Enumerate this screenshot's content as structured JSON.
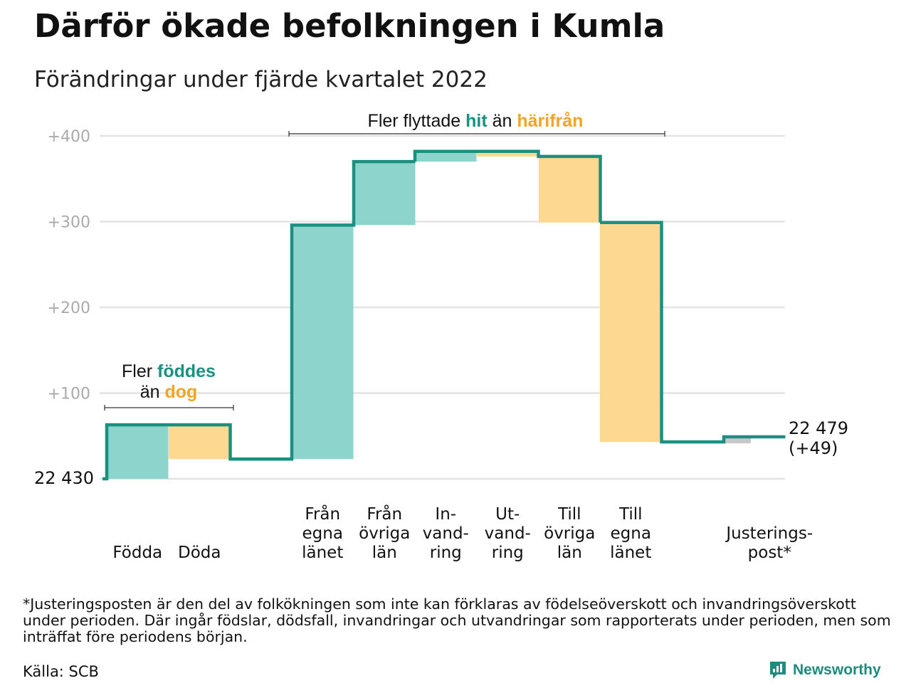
{
  "title": "Därför ökade befolkningen i Kumla",
  "subtitle": "Förändringar under fjärde kvartalet 2022",
  "chart_data": {
    "type": "waterfall",
    "start_value": 22430,
    "start_label": "22 430",
    "end_value": 22479,
    "end_label": "22 479",
    "end_change_label": "(+49)",
    "y_ticks": [
      {
        "value": 100,
        "label": "+100"
      },
      {
        "value": 200,
        "label": "+200"
      },
      {
        "value": 300,
        "label": "+300"
      },
      {
        "value": 400,
        "label": "+400"
      }
    ],
    "ylim": [
      0,
      420
    ],
    "grid": true,
    "steps": [
      {
        "label": [
          "Födda"
        ],
        "change": 63,
        "kind": "in",
        "group": "births"
      },
      {
        "label": [
          "Döda"
        ],
        "change": -40,
        "kind": "out",
        "group": "births"
      },
      {
        "label": [
          "Från",
          "egna",
          "länet"
        ],
        "change": 273,
        "kind": "in",
        "group": "moves"
      },
      {
        "label": [
          "Från",
          "övriga",
          "län"
        ],
        "change": 74,
        "kind": "in",
        "group": "moves"
      },
      {
        "label": [
          "In-",
          "vand-",
          "ring"
        ],
        "change": 12,
        "kind": "in",
        "group": "moves"
      },
      {
        "label": [
          "Ut-",
          "vand-",
          "ring"
        ],
        "change": -6,
        "kind": "out",
        "group": "moves"
      },
      {
        "label": [
          "Till",
          "övriga",
          "län"
        ],
        "change": -77,
        "kind": "out",
        "group": "moves"
      },
      {
        "label": [
          "Till",
          "egna",
          "länet"
        ],
        "change": -256,
        "kind": "out",
        "group": "moves"
      },
      {
        "label": [
          "Justerings-",
          "post*"
        ],
        "change": 6,
        "kind": "adjust",
        "group": "adjust"
      }
    ],
    "annotations": {
      "births": {
        "prefix_line1": "Fler ",
        "hl1": "föddes",
        "prefix_line2": "än ",
        "hl2": "dog"
      },
      "moves": {
        "prefix": "Fler flyttade ",
        "hl1": "hit",
        "mid": " än ",
        "hl2": "härifrån"
      }
    },
    "colors": {
      "line": "#1a9080",
      "in_fill": "#8dd5cc",
      "out_fill": "#fcd891",
      "in_text": "#1a9080",
      "out_text": "#f0a526",
      "adjust_fill": "#c8c8c8",
      "grid": "#e3e3e3",
      "tick_text": "#aaaaaa"
    }
  },
  "footnote": "*Justeringsposten är den del av folkökningen som inte kan förklaras av födelseöverskott och invandringsöverskott under perioden. Där ingår födslar, dödsfall, invandringar och utvandringar som rapporterats under perioden, men som inträffat före periodens början.",
  "source": "Källa: SCB",
  "brand": {
    "name": "Newsworthy",
    "icon": "newsworthy-logo-icon"
  }
}
